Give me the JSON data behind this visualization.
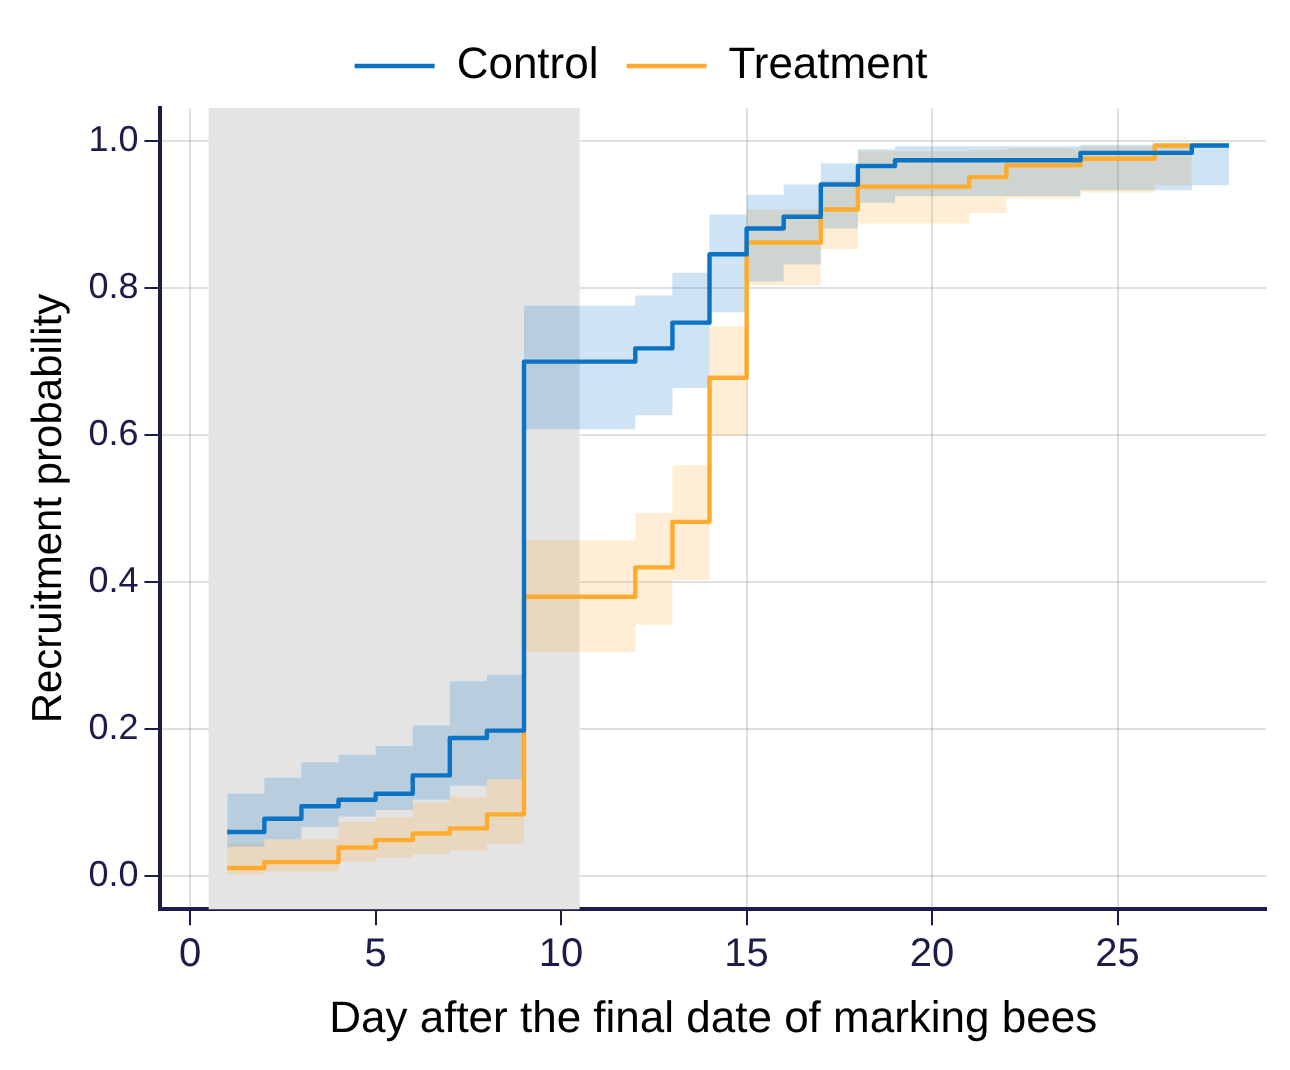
{
  "chart_data": {
    "type": "step",
    "xlabel": "Day after the final date of marking bees",
    "ylabel": "Recruitment probability",
    "xlim": [
      -0.8,
      29
    ],
    "xticks": [
      0,
      5,
      10,
      15,
      20,
      25
    ],
    "ylim": [
      -0.045,
      1.045
    ],
    "yticks": [
      {
        "value": 0,
        "label": "0.0"
      },
      {
        "value": 0.2,
        "label": "0.2"
      },
      {
        "value": 0.4,
        "label": "0.4"
      },
      {
        "value": 0.6,
        "label": "0.6"
      },
      {
        "value": 0.8,
        "label": "0.8"
      },
      {
        "value": 1,
        "label": "1.0"
      }
    ],
    "grid": true,
    "legend": "top",
    "marker": "none",
    "line_style": "solid",
    "bands": [
      {
        "axis": "x",
        "from": 0.5,
        "to": 10.5,
        "color": "#e4e4e4"
      }
    ],
    "series": [
      {
        "name": "Control",
        "color": "#0b72c4",
        "x": [
          1,
          2,
          3,
          4,
          5,
          6,
          7,
          8,
          9,
          12,
          13,
          14,
          15,
          16,
          17,
          18,
          19,
          24,
          27,
          28
        ],
        "values": [
          0.06,
          0.078,
          0.095,
          0.104,
          0.112,
          0.137,
          0.188,
          0.198,
          0.7,
          0.718,
          0.753,
          0.846,
          0.881,
          0.897,
          0.941,
          0.966,
          0.974,
          0.984,
          0.994,
          0.994
        ],
        "lower": [
          0.04,
          0.05,
          0.067,
          0.081,
          0.09,
          0.104,
          0.123,
          0.132,
          0.608,
          0.627,
          0.664,
          0.767,
          0.809,
          0.832,
          0.881,
          0.916,
          0.925,
          0.933,
          0.94,
          0.94
        ],
        "upper": [
          0.112,
          0.134,
          0.155,
          0.165,
          0.177,
          0.205,
          0.265,
          0.274,
          0.776,
          0.79,
          0.821,
          0.9,
          0.927,
          0.941,
          0.97,
          0.989,
          0.993,
          0.995,
          0.997,
          0.997
        ]
      },
      {
        "name": "Treatment",
        "color": "#ffab2e",
        "x": [
          1,
          2,
          4,
          5,
          6,
          7,
          8,
          9,
          12,
          13,
          14,
          15,
          17,
          18,
          21,
          22,
          24,
          26,
          27
        ],
        "values": [
          0.011,
          0.019,
          0.039,
          0.049,
          0.058,
          0.065,
          0.084,
          0.38,
          0.42,
          0.482,
          0.678,
          0.862,
          0.907,
          0.938,
          0.951,
          0.967,
          0.976,
          0.994,
          0.994
        ],
        "lower": [
          0.002,
          0.006,
          0.02,
          0.025,
          0.03,
          0.035,
          0.044,
          0.305,
          0.342,
          0.403,
          0.599,
          0.804,
          0.853,
          0.888,
          0.902,
          0.922,
          0.93,
          0.94,
          0.94
        ],
        "upper": [
          0.044,
          0.05,
          0.074,
          0.08,
          0.1,
          0.108,
          0.132,
          0.457,
          0.494,
          0.559,
          0.748,
          0.907,
          0.946,
          0.986,
          0.988,
          0.99,
          0.993,
          0.997,
          0.997
        ]
      }
    ]
  }
}
